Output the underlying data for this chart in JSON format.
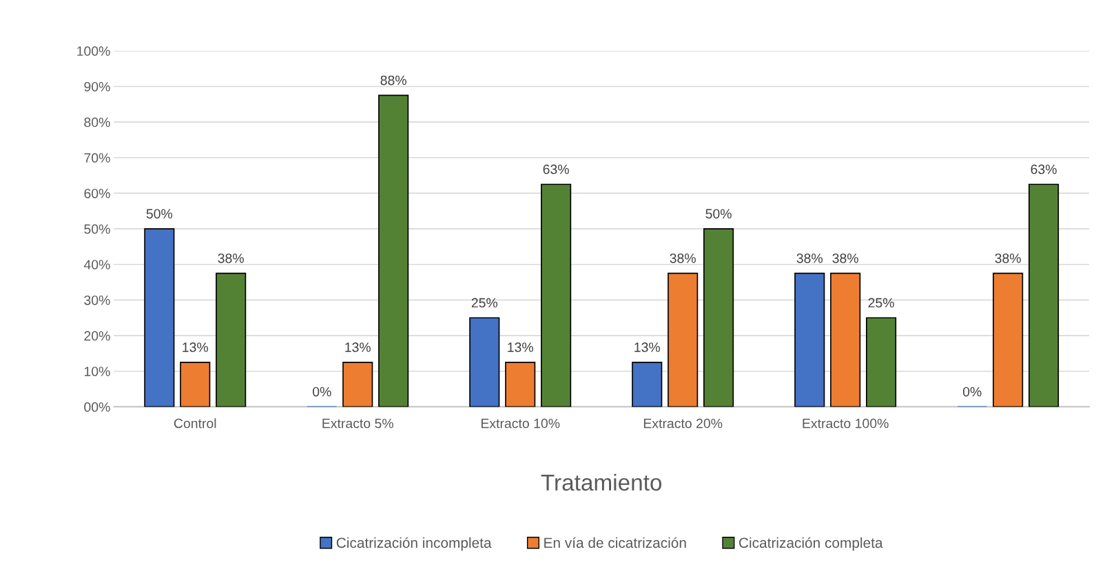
{
  "chart_data": {
    "type": "bar",
    "xlabel": "Tratamiento",
    "categories": [
      "Control",
      "Extracto 5%",
      "Extracto 10%",
      "Extracto 20%",
      "Extracto 100%",
      null
    ],
    "series": [
      {
        "name": "Cicatrización incompleta",
        "color": "#4472c4",
        "values": [
          50,
          0,
          25,
          12.5,
          37.5,
          0
        ],
        "value_labels": [
          "50%",
          "0%",
          "25%",
          "13%",
          "38%",
          "0%"
        ]
      },
      {
        "name": "En vía de cicatrización",
        "color": "#ed7d31",
        "values": [
          12.5,
          12.5,
          12.5,
          37.5,
          37.5,
          37.5
        ],
        "value_labels": [
          "13%",
          "13%",
          "13%",
          "38%",
          "38%",
          "38%"
        ]
      },
      {
        "name": "Cicatrización completa",
        "color": "#548235",
        "values": [
          37.5,
          87.5,
          62.5,
          50,
          25,
          62.5
        ],
        "value_labels": [
          "38%",
          "88%",
          "63%",
          "50%",
          "25%",
          "63%"
        ]
      }
    ],
    "ylim": [
      0,
      100
    ],
    "yticks": [
      {
        "value": 0,
        "label": "00%"
      },
      {
        "value": 10,
        "label": "10%"
      },
      {
        "value": 20,
        "label": "20%"
      },
      {
        "value": 30,
        "label": "30%"
      },
      {
        "value": 40,
        "label": "40%"
      },
      {
        "value": 50,
        "label": "50%"
      },
      {
        "value": 60,
        "label": "60%"
      },
      {
        "value": 70,
        "label": "70%"
      },
      {
        "value": 80,
        "label": "80%"
      },
      {
        "value": 90,
        "label": "90%"
      },
      {
        "value": 100,
        "label": "100%"
      }
    ],
    "grid": "y",
    "legend": "bottom"
  }
}
